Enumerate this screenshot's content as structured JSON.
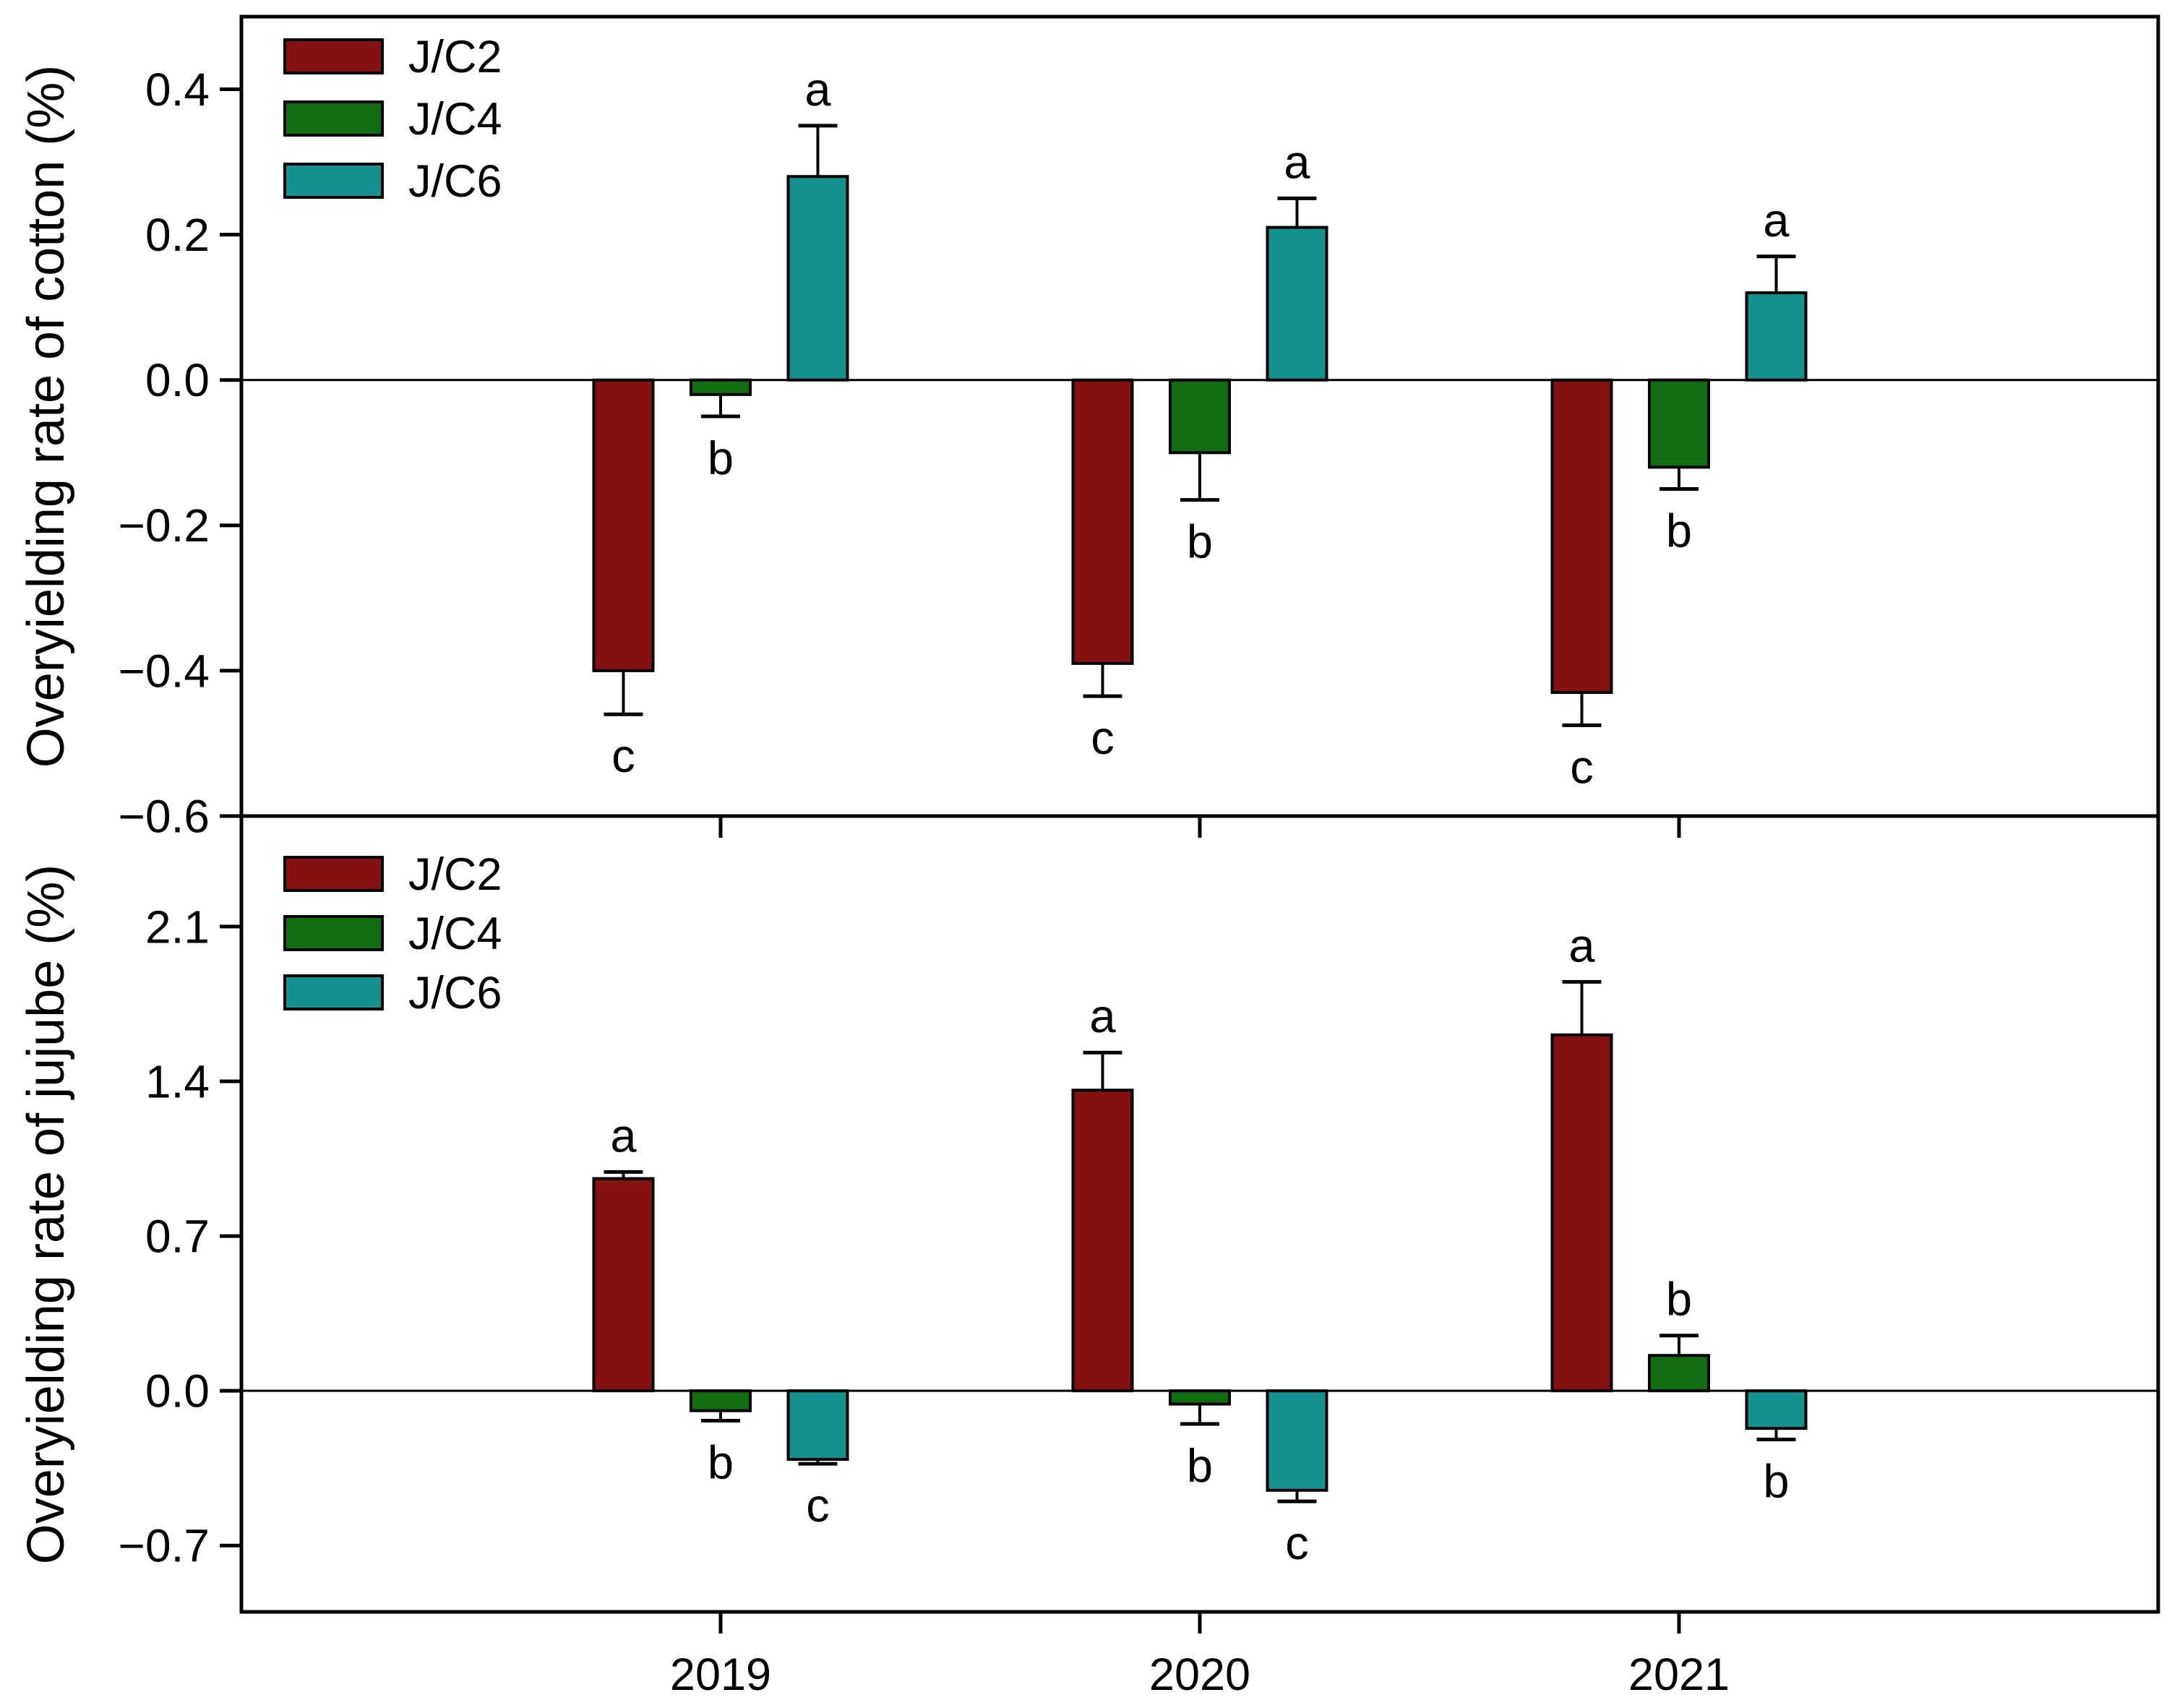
{
  "figure": {
    "background": "#ffffff",
    "axis_color": "#000000"
  },
  "chart_data": [
    {
      "type": "bar",
      "panel": "top",
      "ylabel": "Overyielding rate of cotton (%)",
      "categories": [
        "2019",
        "2020",
        "2021"
      ],
      "yticks": [
        0.4,
        0.2,
        0.0,
        -0.2,
        -0.4,
        -0.6
      ],
      "ylim": [
        -0.6,
        0.5
      ],
      "tick_decimals": 1,
      "show_x_tick_labels": false,
      "legend": {
        "position": "top-left",
        "items": [
          "J/C2",
          "J/C4",
          "J/C6"
        ]
      },
      "series": [
        {
          "name": "J/C2",
          "color": "#841212",
          "values": [
            -0.4,
            -0.39,
            -0.43
          ],
          "errors": [
            0.06,
            0.045,
            0.045
          ],
          "letters": [
            "c",
            "c",
            "c"
          ]
        },
        {
          "name": "J/C4",
          "color": "#126C12",
          "values": [
            -0.02,
            -0.1,
            -0.12
          ],
          "errors": [
            0.03,
            0.065,
            0.03
          ],
          "letters": [
            "b",
            "b",
            "b"
          ]
        },
        {
          "name": "J/C6",
          "color": "#16918F",
          "values": [
            0.28,
            0.21,
            0.12
          ],
          "errors": [
            0.07,
            0.04,
            0.05
          ],
          "letters": [
            "a",
            "a",
            "a"
          ]
        }
      ]
    },
    {
      "type": "bar",
      "panel": "bottom",
      "ylabel": "Overyielding rate of jujube (%)",
      "categories": [
        "2019",
        "2020",
        "2021"
      ],
      "yticks": [
        2.1,
        1.4,
        0.7,
        0.0,
        -0.7
      ],
      "ylim": [
        -1.0,
        2.6
      ],
      "tick_decimals": 1,
      "show_x_tick_labels": true,
      "legend": {
        "position": "top-left",
        "items": [
          "J/C2",
          "J/C4",
          "J/C6"
        ]
      },
      "series": [
        {
          "name": "J/C2",
          "color": "#841212",
          "values": [
            0.96,
            1.36,
            1.61
          ],
          "errors": [
            0.03,
            0.17,
            0.24
          ],
          "letters": [
            "a",
            "a",
            "a"
          ]
        },
        {
          "name": "J/C4",
          "color": "#126C12",
          "values": [
            -0.09,
            -0.06,
            0.16
          ],
          "errors": [
            0.045,
            0.09,
            0.09
          ],
          "letters": [
            "b",
            "b",
            "b"
          ]
        },
        {
          "name": "J/C6",
          "color": "#16918F",
          "values": [
            -0.31,
            -0.45,
            -0.17
          ],
          "errors": [
            0.02,
            0.05,
            0.05
          ],
          "letters": [
            "c",
            "c",
            "b"
          ]
        }
      ]
    }
  ]
}
